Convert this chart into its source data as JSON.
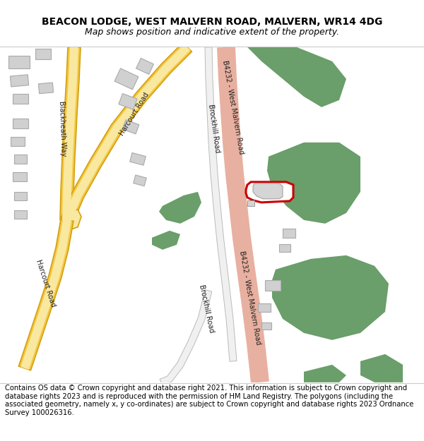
{
  "title": "BEACON LODGE, WEST MALVERN ROAD, MALVERN, WR14 4DG",
  "subtitle": "Map shows position and indicative extent of the property.",
  "footer": "Contains OS data © Crown copyright and database right 2021. This information is subject to Crown copyright and database rights 2023 and is reproduced with the permission of HM Land Registry. The polygons (including the associated geometry, namely x, y co-ordinates) are subject to Crown copyright and database rights 2023 Ordnance Survey 100026316.",
  "bg_color": "#ffffff",
  "map_bg": "#ffffff",
  "green_color": "#6a9e6a",
  "road_b4232_color": "#e8b0a0",
  "road_yellow_color": "#f5c842",
  "road_yellow_edge": "#d4a010",
  "road_yellow_fill": "#f9e8a0",
  "road_white_color": "#e8e8e8",
  "building_color": "#d0d0d0",
  "building_edge": "#aaaaaa",
  "plot_edge": "#cc0000",
  "road_label_color": "#222222",
  "title_fontsize": 10,
  "subtitle_fontsize": 9,
  "footer_fontsize": 7.2
}
